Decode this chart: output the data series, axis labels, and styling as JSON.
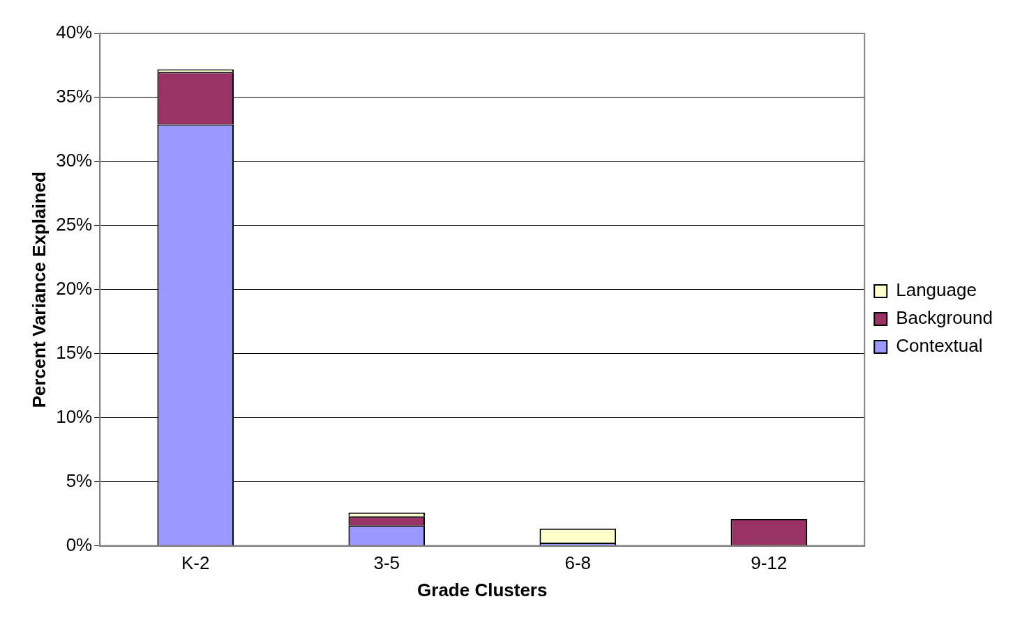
{
  "chart_data": {
    "type": "bar",
    "stacked": true,
    "xlabel": "Grade Clusters",
    "ylabel": "Percent Variance Explained",
    "categories": [
      "K-2",
      "3-5",
      "6-8",
      "9-12"
    ],
    "series": [
      {
        "name": "Contextual",
        "color": "#9999ff",
        "values": [
          32.9,
          1.6,
          0.25,
          0
        ]
      },
      {
        "name": "Background",
        "color": "#993366",
        "values": [
          4.1,
          0.7,
          0,
          2.1
        ]
      },
      {
        "name": "Language",
        "color": "#ffffcc",
        "values": [
          0.2,
          0.3,
          1.1,
          0
        ]
      }
    ],
    "ylim": [
      0,
      40
    ],
    "yticks": [
      {
        "value": 0,
        "label": "0%"
      },
      {
        "value": 5,
        "label": "5%"
      },
      {
        "value": 10,
        "label": "10%"
      },
      {
        "value": 15,
        "label": "15%"
      },
      {
        "value": 20,
        "label": "20%"
      },
      {
        "value": 25,
        "label": "25%"
      },
      {
        "value": 30,
        "label": "30%"
      },
      {
        "value": 35,
        "label": "35%"
      },
      {
        "value": 40,
        "label": "40%"
      }
    ],
    "grid": "y",
    "legend": "right"
  }
}
